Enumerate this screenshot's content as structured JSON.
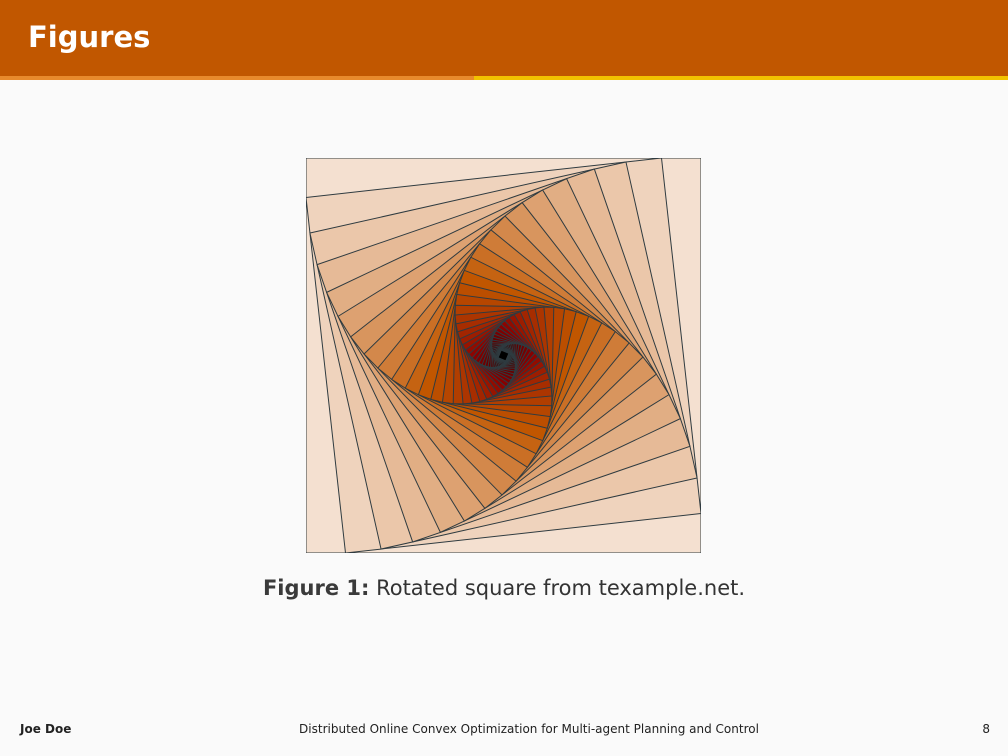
{
  "slide": {
    "title": "Figures",
    "figure": {
      "label": "Figure 1:",
      "caption": "Rotated square from texample.net."
    }
  },
  "footer": {
    "author": "Joe Doe",
    "presentation_title": "Distributed Online Convex Optimization for Multi-agent Planning and Control",
    "page_number": "8"
  },
  "colors": {
    "header": "#c15700",
    "accent_left": "#e88a2c",
    "accent_right": "#f2c200",
    "square_light": "#f4e0d0",
    "square_mid": "#c15700",
    "square_dark": "#8b0000",
    "square_center": "#000000",
    "stroke": "#2f3b40"
  }
}
